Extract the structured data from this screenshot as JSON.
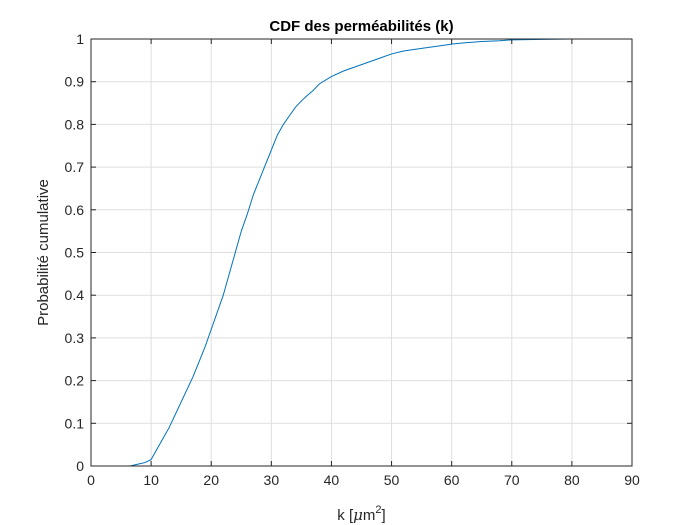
{
  "chart_data": {
    "type": "line",
    "title": "CDF des perméabilités (k)",
    "xlabel": "k [μm²]",
    "xlabel_parts": {
      "base": "k [",
      "mu": "μ",
      "unit": "m",
      "exp": "2",
      "close": "]"
    },
    "ylabel": "Probabilité cumulative",
    "xlim": [
      0,
      90
    ],
    "ylim": [
      0,
      1
    ],
    "xticks": [
      0,
      10,
      20,
      30,
      40,
      50,
      60,
      70,
      80,
      90
    ],
    "xtick_labels": [
      "0",
      "10",
      "20",
      "30",
      "40",
      "50",
      "60",
      "70",
      "80",
      "90"
    ],
    "yticks": [
      0,
      0.1,
      0.2,
      0.3,
      0.4,
      0.5,
      0.6,
      0.7,
      0.8,
      0.9,
      1
    ],
    "ytick_labels": [
      "0",
      "0.1",
      "0.2",
      "0.3",
      "0.4",
      "0.5",
      "0.6",
      "0.7",
      "0.8",
      "0.9",
      "1"
    ],
    "grid": true,
    "series": [
      {
        "color": "#0072bd",
        "x": [
          6.5,
          8,
          9,
          10,
          11,
          12,
          13,
          14,
          15,
          16,
          17,
          18,
          19,
          20,
          21,
          22,
          23,
          24,
          25,
          26,
          27,
          28,
          29,
          30,
          31,
          32,
          33,
          34,
          35,
          36,
          37,
          38,
          40,
          42,
          45,
          48,
          50,
          52,
          55,
          58,
          60,
          62,
          65,
          68,
          70,
          75,
          80,
          85
        ],
        "y": [
          0,
          0.005,
          0.008,
          0.015,
          0.04,
          0.065,
          0.09,
          0.12,
          0.15,
          0.18,
          0.21,
          0.245,
          0.28,
          0.32,
          0.36,
          0.4,
          0.45,
          0.5,
          0.55,
          0.59,
          0.635,
          0.67,
          0.705,
          0.74,
          0.775,
          0.8,
          0.82,
          0.84,
          0.855,
          0.868,
          0.88,
          0.895,
          0.912,
          0.925,
          0.94,
          0.955,
          0.965,
          0.972,
          0.978,
          0.984,
          0.988,
          0.991,
          0.994,
          0.996,
          0.998,
          0.999,
          1.0,
          1.0
        ]
      }
    ]
  }
}
